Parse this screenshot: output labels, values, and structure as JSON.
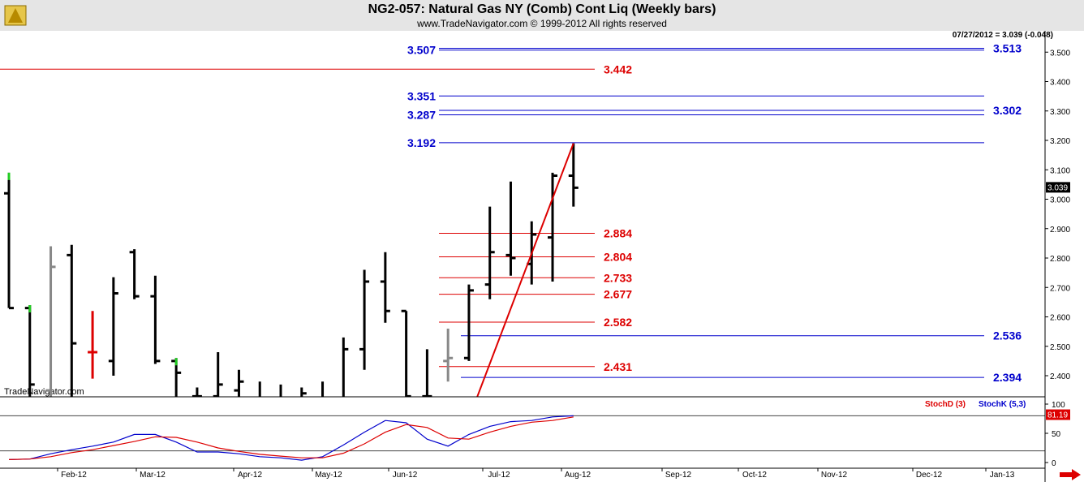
{
  "title": "NG2-057:  Natural Gas NY (Comb) Cont Liq  (Weekly bars)",
  "subtitle": "www.TradeNavigator.com © 1999-2012 All rights reserved",
  "watermark": "TradeNavigator.com",
  "last_price_text": "07/27/2012 = 3.039 (-0.048)",
  "colors": {
    "blue": "#0000cc",
    "red": "#dd0000",
    "green": "#22cc22",
    "gray": "#888888",
    "titlebar": "#e5e5e5"
  },
  "icons": {
    "logo": "trade-navigator-logo-icon",
    "nav": "red-right-arrow-icon"
  },
  "chart_data": [
    {
      "type": "ohlc",
      "ylim": [
        2.3,
        3.56
      ],
      "y_ticks": [
        "2.400",
        "2.500",
        "2.600",
        "2.700",
        "2.800",
        "2.900",
        "3.000",
        "3.100",
        "3.200",
        "3.300",
        "3.400",
        "3.500"
      ],
      "x_ticks": [
        "Feb-12",
        "Mar-12",
        "Apr-12",
        "May-12",
        "Jun-12",
        "Jul-12",
        "Aug-12",
        "Sep-12",
        "Oct-12",
        "Nov-12",
        "Dec-12",
        "Jan-13"
      ],
      "current_price": "3.039",
      "bars": [
        {
          "x": 0,
          "h": 3.09,
          "l": 2.63,
          "o": 3.02,
          "c": 2.63,
          "hl": "green"
        },
        {
          "x": 1,
          "h": 2.64,
          "l": 2.1,
          "o": 2.63,
          "c": 2.37,
          "hl": "green"
        },
        {
          "x": 2,
          "h": 2.84,
          "l": 2.15,
          "o": 2.35,
          "c": 2.77,
          "col": "gray"
        },
        {
          "x": 3,
          "h": 2.845,
          "l": 2.3,
          "o": 2.81,
          "c": 2.51
        },
        {
          "x": 4,
          "h": 2.62,
          "l": 2.39,
          "o": 2.48,
          "c": 2.48,
          "col": "red"
        },
        {
          "x": 5,
          "h": 2.735,
          "l": 2.4,
          "o": 2.45,
          "c": 2.68
        },
        {
          "x": 6,
          "h": 2.83,
          "l": 2.66,
          "o": 2.82,
          "c": 2.67
        },
        {
          "x": 7,
          "h": 2.74,
          "l": 2.44,
          "o": 2.67,
          "c": 2.45
        },
        {
          "x": 8,
          "h": 2.46,
          "l": 2.2,
          "o": 2.45,
          "c": 2.41,
          "hl": "green"
        },
        {
          "x": 9,
          "h": 2.36,
          "l": 2.25,
          "o": 2.33,
          "c": 2.33
        },
        {
          "x": 10,
          "h": 2.48,
          "l": 2.26,
          "o": 2.33,
          "c": 2.37
        },
        {
          "x": 11,
          "h": 2.42,
          "l": 2.26,
          "o": 2.35,
          "c": 2.38
        },
        {
          "x": 12,
          "h": 2.38,
          "l": 2.22,
          "o": 2.3,
          "c": 2.3
        },
        {
          "x": 13,
          "h": 2.37,
          "l": 2.18,
          "o": 2.28,
          "c": 2.32
        },
        {
          "x": 14,
          "h": 2.36,
          "l": 2.2,
          "o": 2.32,
          "c": 2.34
        },
        {
          "x": 15,
          "h": 2.38,
          "l": 2.2,
          "o": 2.32,
          "c": 2.31
        },
        {
          "x": 16,
          "h": 2.53,
          "l": 2.2,
          "o": 2.3,
          "c": 2.49
        },
        {
          "x": 17,
          "h": 2.76,
          "l": 2.42,
          "o": 2.49,
          "c": 2.72
        },
        {
          "x": 18,
          "h": 2.82,
          "l": 2.58,
          "o": 2.72,
          "c": 2.62
        },
        {
          "x": 19,
          "h": 2.62,
          "l": 2.25,
          "o": 2.62,
          "c": 2.33
        },
        {
          "x": 20,
          "h": 2.49,
          "l": 2.26,
          "o": 2.33,
          "c": 2.33
        },
        {
          "x": 21,
          "h": 2.56,
          "l": 2.38,
          "o": 2.45,
          "c": 2.46,
          "col": "gray"
        },
        {
          "x": 22,
          "h": 2.71,
          "l": 2.45,
          "o": 2.46,
          "c": 2.69
        },
        {
          "x": 23,
          "h": 2.975,
          "l": 2.66,
          "o": 2.71,
          "c": 2.82
        },
        {
          "x": 24,
          "h": 3.06,
          "l": 2.74,
          "o": 2.81,
          "c": 2.8
        },
        {
          "x": 25,
          "h": 2.925,
          "l": 2.71,
          "o": 2.78,
          "c": 2.88
        },
        {
          "x": 26,
          "h": 3.09,
          "l": 2.72,
          "o": 2.87,
          "c": 3.08
        },
        {
          "x": 27,
          "h": 3.19,
          "l": 2.975,
          "o": 3.08,
          "c": 3.039
        }
      ],
      "trendline": {
        "from": {
          "x": 22.3,
          "y": 2.31
        },
        "to": {
          "x": 27,
          "y": 3.19
        }
      },
      "blue_levels_left": [
        {
          "value": 3.507,
          "label": "3.507"
        },
        {
          "value": 3.351,
          "label": "3.351"
        },
        {
          "value": 3.287,
          "label": "3.287"
        },
        {
          "value": 3.192,
          "label": "3.192"
        }
      ],
      "blue_levels_right": [
        {
          "value": 3.513,
          "label": "3.513"
        },
        {
          "value": 3.302,
          "label": "3.302"
        },
        {
          "value": 2.536,
          "label": "2.536"
        },
        {
          "value": 2.394,
          "label": "2.394"
        }
      ],
      "red_levels": [
        {
          "value": 3.442,
          "label": "3.442",
          "from_left": true
        },
        {
          "value": 2.884,
          "label": "2.884"
        },
        {
          "value": 2.804,
          "label": "2.804"
        },
        {
          "value": 2.733,
          "label": "2.733"
        },
        {
          "value": 2.677,
          "label": "2.677"
        },
        {
          "value": 2.582,
          "label": "2.582"
        },
        {
          "value": 2.431,
          "label": "2.431"
        }
      ]
    },
    {
      "type": "line",
      "ylim": [
        0,
        100
      ],
      "y_ticks": [
        "0",
        "50",
        "100"
      ],
      "reference_lines": [
        20,
        80
      ],
      "current_value": "81.19",
      "legend": [
        {
          "name": "StochD (3)",
          "color": "#dd0000"
        },
        {
          "name": "StochK (5,3)",
          "color": "#0000cc"
        }
      ],
      "series": [
        {
          "name": "StochK (5,3)",
          "color": "#0000cc",
          "x": [
            0,
            1,
            2,
            3,
            4,
            5,
            6,
            7,
            8,
            9,
            10,
            11,
            12,
            13,
            14,
            15,
            16,
            17,
            18,
            19,
            20,
            21,
            22,
            23,
            24,
            25,
            26,
            27
          ],
          "values": [
            5,
            6,
            15,
            22,
            28,
            35,
            48,
            48,
            35,
            18,
            18,
            15,
            10,
            8,
            4,
            10,
            30,
            52,
            72,
            68,
            40,
            28,
            48,
            62,
            70,
            72,
            78,
            80
          ]
        },
        {
          "name": "StochD (3)",
          "color": "#dd0000",
          "x": [
            0,
            1,
            2,
            3,
            4,
            5,
            6,
            7,
            8,
            9,
            10,
            11,
            12,
            13,
            14,
            15,
            16,
            17,
            18,
            19,
            20,
            21,
            22,
            23,
            24,
            25,
            26,
            27
          ],
          "values": [
            5,
            6,
            10,
            17,
            22,
            29,
            36,
            44,
            43,
            35,
            25,
            19,
            14,
            11,
            8,
            8,
            16,
            32,
            52,
            65,
            60,
            42,
            40,
            52,
            62,
            69,
            72,
            78
          ]
        }
      ]
    }
  ]
}
